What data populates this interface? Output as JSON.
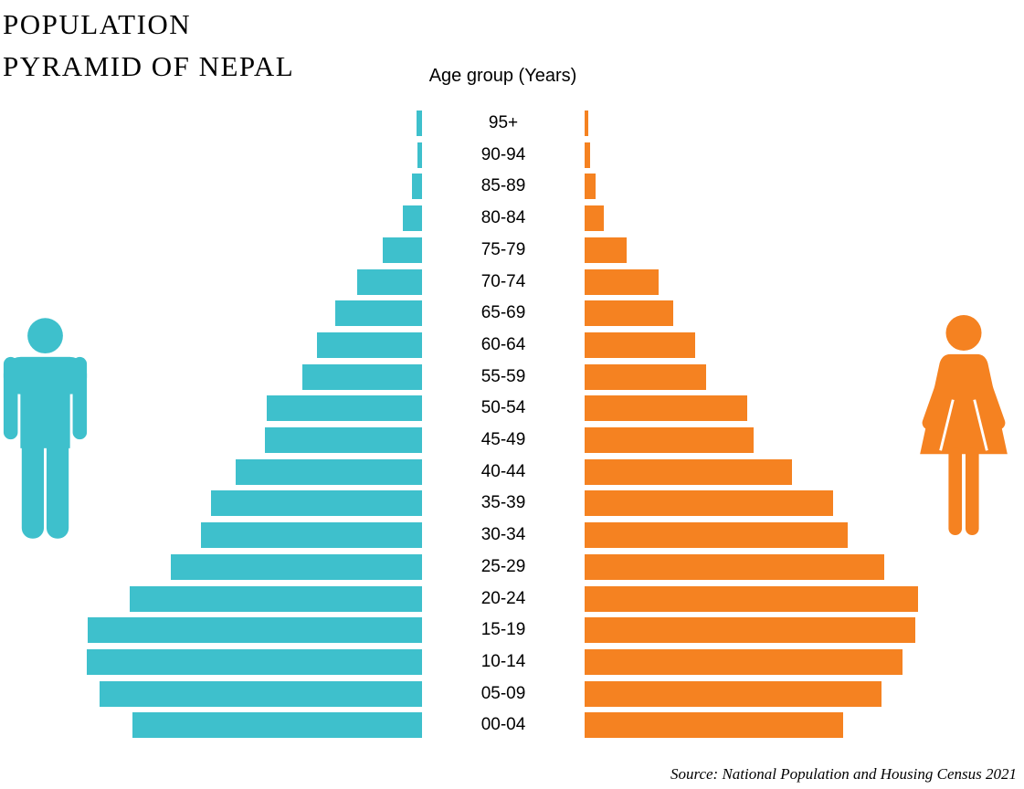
{
  "header": {
    "title_line1": "POPULATION",
    "title_line2": "PYRAMID OF NEPAL"
  },
  "icons": {
    "male_icon": "male-person-silhouette",
    "female_icon": "female-person-silhouette"
  },
  "colors": {
    "male": "#3EC0CC",
    "female": "#F58221",
    "text": "#000000",
    "background": "#FFFFFF"
  },
  "chart_data": {
    "type": "bar",
    "variant": "population-pyramid",
    "title": "POPULATION PYRAMID OF NEPAL",
    "center_axis_label": "Age group (Years)",
    "categories_top_to_bottom": [
      "95+",
      "90-94",
      "85-89",
      "80-84",
      "75-79",
      "70-74",
      "65-69",
      "60-64",
      "55-59",
      "50-54",
      "45-49",
      "40-44",
      "35-39",
      "30-34",
      "25-29",
      "20-24",
      "15-19",
      "10-14",
      "05-09",
      "00-04"
    ],
    "series": [
      {
        "name": "Male",
        "side": "left",
        "color": "#3EC0CC",
        "values": [
          6,
          5,
          11,
          21,
          43,
          71,
          95,
          115,
          131,
          170,
          172,
          204,
          231,
          242,
          275,
          320,
          366,
          367,
          353,
          317
        ]
      },
      {
        "name": "Female",
        "side": "right",
        "color": "#F58221",
        "values": [
          4,
          6,
          12,
          21,
          46,
          81,
          97,
          121,
          133,
          178,
          185,
          227,
          272,
          288,
          328,
          365,
          362,
          348,
          325,
          283
        ]
      }
    ],
    "units": "relative bar length (no numeric axis shown in image)",
    "axis_ticks": "none",
    "grid": false,
    "legend": "none (male/female indicated by side icons and color)",
    "source": "Source: National Population and Housing Census 2021"
  }
}
